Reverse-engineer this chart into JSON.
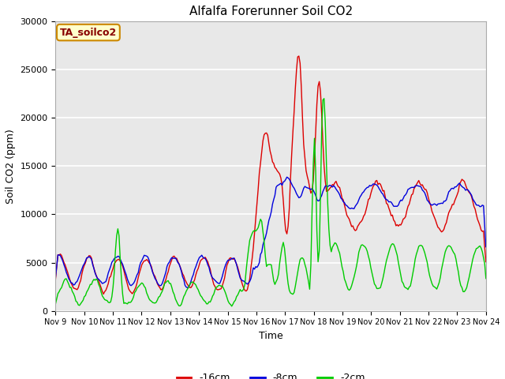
{
  "title": "Alfalfa Forerunner Soil CO2",
  "ylabel": "Soil CO2 (ppm)",
  "xlabel": "Time",
  "annotation": "TA_soilco2",
  "ylim": [
    0,
    30000
  ],
  "yticks": [
    0,
    5000,
    10000,
    15000,
    20000,
    25000,
    30000
  ],
  "legend_labels": [
    "-16cm",
    "-8cm",
    "-2cm"
  ],
  "legend_colors": [
    "#dd0000",
    "#0000dd",
    "#00cc00"
  ],
  "x_tick_labels": [
    "Nov 9",
    "Nov 10",
    "Nov 11",
    "Nov 12",
    "Nov 13",
    "Nov 14",
    "Nov 15",
    "Nov 16",
    "Nov 17",
    "Nov 18",
    "Nov 19",
    "Nov 20",
    "Nov 21",
    "Nov 22",
    "Nov 23",
    "Nov 24"
  ],
  "plot_bg_color": "#e8e8e8",
  "fig_bg_color": "#ffffff",
  "grid_color": "#ffffff",
  "title_fontsize": 11,
  "axis_label_fontsize": 9,
  "tick_fontsize": 8,
  "annotation_fontsize": 9,
  "legend_fontsize": 9,
  "n_days": 15,
  "n_points": 360
}
